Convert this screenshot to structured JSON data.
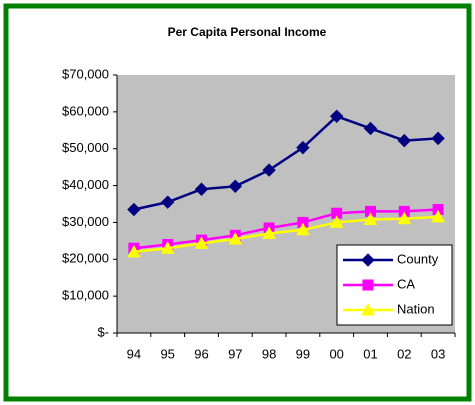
{
  "chart_data": {
    "type": "line",
    "title": "Per Capita Personal Income",
    "categories": [
      "94",
      "95",
      "96",
      "97",
      "98",
      "99",
      "00",
      "01",
      "02",
      "03"
    ],
    "series": [
      {
        "name": "County",
        "color": "#000080",
        "marker": "diamond",
        "values": [
          33500,
          35500,
          39000,
          39800,
          44200,
          50300,
          58800,
          55500,
          52200,
          52800
        ]
      },
      {
        "name": "CA",
        "color": "#ff00ff",
        "marker": "square",
        "values": [
          23000,
          24000,
          25200,
          26500,
          28500,
          30000,
          32500,
          33000,
          33000,
          33500
        ]
      },
      {
        "name": "Nation",
        "color": "#ffff00",
        "marker": "triangle",
        "values": [
          22000,
          23000,
          24300,
          25500,
          27000,
          28000,
          30000,
          30800,
          31000,
          31500
        ]
      }
    ],
    "ylim": [
      0,
      70000
    ],
    "yticks": [
      {
        "value": 0,
        "label": "$-"
      },
      {
        "value": 10000,
        "label": "$10,000"
      },
      {
        "value": 20000,
        "label": "$20,000"
      },
      {
        "value": 30000,
        "label": "$30,000"
      },
      {
        "value": 40000,
        "label": "$40,000"
      },
      {
        "value": 50000,
        "label": "$50,000"
      },
      {
        "value": 60000,
        "label": "$60,000"
      },
      {
        "value": 70000,
        "label": "$70,000"
      }
    ],
    "grid": false,
    "legend": "lower right"
  }
}
